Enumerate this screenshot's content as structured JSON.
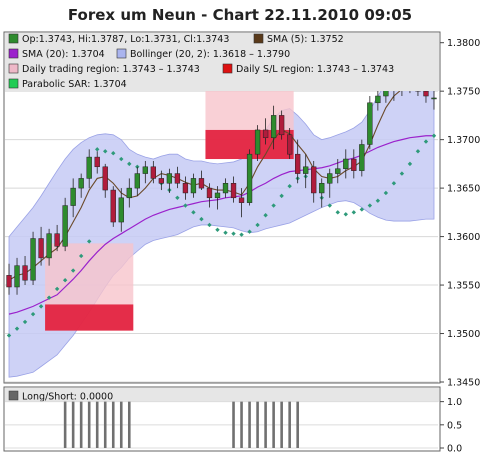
{
  "title": "Forex um Neun - Chart 22.11.2010 09:05",
  "legend": [
    {
      "text": "Op:1.3743, Hi:1.3787, Lo:1.3731, Cl:1.3743",
      "color": "#2e8b2e"
    },
    {
      "text": "SMA (5): 1.3752",
      "color": "#5a3a1a"
    },
    {
      "text": "SMA (20): 1.3704",
      "color": "#9b22cc"
    },
    {
      "text": "Bollinger (20, 2): 1.3618 – 1.3790",
      "color": "#aab4ee"
    },
    {
      "text": "Daily trading region: 1.3743 – 1.3743",
      "color": "#eeb8c8"
    },
    {
      "text": "Daily S/L region: 1.3743 – 1.3743",
      "color": "#dd1111"
    },
    {
      "text": "Parabolic SAR: 1.3704",
      "color": "#22cc55"
    }
  ],
  "sub_legend": {
    "text": "Long/Short: 0.0000",
    "color": "#666666"
  },
  "colors": {
    "up": "#2e8b2e",
    "down": "#b01c3c",
    "sma5": "#6b4a2a",
    "sma20": "#9b22cc",
    "band": "#c6caf4",
    "sar": "#2e9a7a",
    "sl": "#e01030",
    "trade": "#f7c4cc",
    "bar": "#707070"
  },
  "chart_data": [
    {
      "type": "candlestick",
      "ylim": [
        1.345,
        1.381
      ],
      "y_ticks": [
        "1.3450",
        "1.3500",
        "1.3550",
        "1.3600",
        "1.3650",
        "1.3700",
        "1.3750",
        "1.3800"
      ],
      "grid": true,
      "ohlc": [
        [
          1.356,
          1.3572,
          1.354,
          1.3548
        ],
        [
          1.3548,
          1.3578,
          1.354,
          1.357
        ],
        [
          1.357,
          1.358,
          1.355,
          1.3555
        ],
        [
          1.3555,
          1.3605,
          1.355,
          1.3598
        ],
        [
          1.3598,
          1.361,
          1.357,
          1.3578
        ],
        [
          1.3578,
          1.3608,
          1.357,
          1.3603
        ],
        [
          1.3603,
          1.3612,
          1.3585,
          1.359
        ],
        [
          1.359,
          1.364,
          1.3585,
          1.3632
        ],
        [
          1.3632,
          1.366,
          1.362,
          1.365
        ],
        [
          1.365,
          1.3665,
          1.364,
          1.366
        ],
        [
          1.366,
          1.369,
          1.365,
          1.3682
        ],
        [
          1.3682,
          1.3688,
          1.3665,
          1.3672
        ],
        [
          1.3672,
          1.3675,
          1.364,
          1.3648
        ],
        [
          1.3648,
          1.3652,
          1.361,
          1.3615
        ],
        [
          1.3615,
          1.365,
          1.3605,
          1.364
        ],
        [
          1.364,
          1.366,
          1.363,
          1.365
        ],
        [
          1.365,
          1.3672,
          1.3642,
          1.3665
        ],
        [
          1.3665,
          1.3678,
          1.3655,
          1.3672
        ],
        [
          1.3672,
          1.3678,
          1.3655,
          1.366
        ],
        [
          1.366,
          1.3668,
          1.3648,
          1.3655
        ],
        [
          1.3655,
          1.367,
          1.3645,
          1.3665
        ],
        [
          1.3665,
          1.3672,
          1.365,
          1.3655
        ],
        [
          1.3655,
          1.3662,
          1.3638,
          1.3645
        ],
        [
          1.3645,
          1.3665,
          1.364,
          1.366
        ],
        [
          1.366,
          1.3668,
          1.3648,
          1.365
        ],
        [
          1.365,
          1.3655,
          1.363,
          1.364
        ],
        [
          1.364,
          1.3652,
          1.3628,
          1.3645
        ],
        [
          1.3645,
          1.366,
          1.364,
          1.3655
        ],
        [
          1.3655,
          1.3662,
          1.3635,
          1.364
        ],
        [
          1.364,
          1.365,
          1.362,
          1.3635
        ],
        [
          1.3635,
          1.369,
          1.3632,
          1.3685
        ],
        [
          1.3685,
          1.3715,
          1.3678,
          1.371
        ],
        [
          1.371,
          1.3722,
          1.3695,
          1.3702
        ],
        [
          1.3702,
          1.3735,
          1.369,
          1.3725
        ],
        [
          1.3725,
          1.373,
          1.37,
          1.3705
        ],
        [
          1.3705,
          1.3712,
          1.368,
          1.3685
        ],
        [
          1.3685,
          1.37,
          1.3655,
          1.3665
        ],
        [
          1.3665,
          1.3685,
          1.365,
          1.3672
        ],
        [
          1.3672,
          1.3678,
          1.3635,
          1.3645
        ],
        [
          1.3645,
          1.366,
          1.363,
          1.3655
        ],
        [
          1.3655,
          1.367,
          1.364,
          1.3665
        ],
        [
          1.3665,
          1.368,
          1.3655,
          1.367
        ],
        [
          1.367,
          1.369,
          1.366,
          1.368
        ],
        [
          1.368,
          1.369,
          1.366,
          1.3668
        ],
        [
          1.3668,
          1.37,
          1.3662,
          1.3695
        ],
        [
          1.3695,
          1.3745,
          1.369,
          1.3738
        ],
        [
          1.3738,
          1.3752,
          1.373,
          1.3745
        ],
        [
          1.3745,
          1.3762,
          1.3738,
          1.3758
        ],
        [
          1.3758,
          1.3765,
          1.374,
          1.3752
        ],
        [
          1.3752,
          1.3768,
          1.3745,
          1.3762
        ],
        [
          1.3762,
          1.377,
          1.3748,
          1.3755
        ],
        [
          1.3755,
          1.3766,
          1.3745,
          1.375
        ],
        [
          1.375,
          1.376,
          1.3738,
          1.3745
        ],
        [
          1.3743,
          1.3787,
          1.3731,
          1.3743
        ]
      ],
      "sma5": [
        1.3555,
        1.356,
        1.3562,
        1.3568,
        1.3575,
        1.3582,
        1.3588,
        1.36,
        1.3615,
        1.363,
        1.3648,
        1.366,
        1.3662,
        1.3655,
        1.3645,
        1.364,
        1.3642,
        1.365,
        1.366,
        1.3665,
        1.3663,
        1.366,
        1.3656,
        1.3653,
        1.3655,
        1.365,
        1.3648,
        1.3648,
        1.3646,
        1.3643,
        1.3655,
        1.3672,
        1.3685,
        1.37,
        1.371,
        1.3706,
        1.3695,
        1.3685,
        1.367,
        1.3662,
        1.366,
        1.3662,
        1.3668,
        1.3672,
        1.3678,
        1.3695,
        1.3715,
        1.3733,
        1.3745,
        1.3752,
        1.3755,
        1.3756,
        1.3753,
        1.3752
      ],
      "sma20": [
        1.352,
        1.3522,
        1.3525,
        1.3528,
        1.3532,
        1.3536,
        1.354,
        1.3548,
        1.3556,
        1.3565,
        1.3575,
        1.3584,
        1.3592,
        1.3598,
        1.3603,
        1.3608,
        1.3613,
        1.3618,
        1.3622,
        1.3625,
        1.3628,
        1.363,
        1.3632,
        1.3634,
        1.3636,
        1.3637,
        1.3638,
        1.364,
        1.3641,
        1.3642,
        1.3646,
        1.3651,
        1.3655,
        1.366,
        1.3664,
        1.3667,
        1.3668,
        1.3669,
        1.367,
        1.3671,
        1.3673,
        1.3676,
        1.3679,
        1.3681,
        1.3684,
        1.3688,
        1.3692,
        1.3695,
        1.3698,
        1.37,
        1.3702,
        1.3703,
        1.3704,
        1.3704
      ],
      "boll_upper": [
        1.36,
        1.361,
        1.362,
        1.363,
        1.3642,
        1.3655,
        1.3668,
        1.368,
        1.369,
        1.3697,
        1.3702,
        1.3705,
        1.3706,
        1.3705,
        1.37,
        1.369,
        1.3685,
        1.3682,
        1.368,
        1.3683,
        1.3685,
        1.3685,
        1.368,
        1.3678,
        1.3678,
        1.3676,
        1.3675,
        1.3676,
        1.3677,
        1.368,
        1.369,
        1.37,
        1.371,
        1.3722,
        1.373,
        1.3732,
        1.3725,
        1.3716,
        1.3705,
        1.37,
        1.3702,
        1.3705,
        1.3708,
        1.3712,
        1.3718,
        1.373,
        1.3745,
        1.3758,
        1.3768,
        1.3775,
        1.3782,
        1.3786,
        1.3789,
        1.379
      ],
      "boll_lower": [
        1.3455,
        1.3456,
        1.3458,
        1.346,
        1.3466,
        1.3472,
        1.3478,
        1.3488,
        1.3498,
        1.351,
        1.3522,
        1.3535,
        1.3548,
        1.356,
        1.3568,
        1.3578,
        1.3585,
        1.3592,
        1.3596,
        1.3598,
        1.36,
        1.3602,
        1.3606,
        1.361,
        1.3612,
        1.3612,
        1.3611,
        1.361,
        1.3609,
        1.3606,
        1.3604,
        1.3605,
        1.3608,
        1.361,
        1.3612,
        1.3614,
        1.3618,
        1.3622,
        1.3626,
        1.363,
        1.3633,
        1.3636,
        1.3637,
        1.3635,
        1.363,
        1.3624,
        1.362,
        1.3617,
        1.3616,
        1.3616,
        1.3616,
        1.3617,
        1.3618,
        1.3618
      ],
      "sar": [
        1.3498,
        1.3505,
        1.3512,
        1.352,
        1.3528,
        1.3537,
        1.3546,
        1.3555,
        1.3565,
        1.358,
        1.3595,
        1.369,
        1.3688,
        1.3686,
        1.368,
        1.3675,
        1.3672,
        1.3668,
        1.3662,
        1.3655,
        1.3648,
        1.364,
        1.3632,
        1.3625,
        1.3618,
        1.3612,
        1.3607,
        1.3604,
        1.3603,
        1.3602,
        1.3605,
        1.3612,
        1.3622,
        1.3632,
        1.3642,
        1.3652,
        1.366,
        1.3662,
        1.365,
        1.364,
        1.3632,
        1.3625,
        1.3623,
        1.3625,
        1.3628,
        1.3632,
        1.3637,
        1.3645,
        1.3655,
        1.3665,
        1.3675,
        1.3688,
        1.3698,
        1.3704
      ],
      "trading_regions": [
        {
          "start": 5,
          "end": 15,
          "top": 1.3593,
          "bottom": 1.3503
        },
        {
          "start": 25,
          "end": 35,
          "top": 1.377,
          "bottom": 1.368
        }
      ],
      "sl_regions": [
        {
          "start": 5,
          "end": 15,
          "top": 1.353,
          "bottom": 1.3503
        },
        {
          "start": 25,
          "end": 35,
          "top": 1.371,
          "bottom": 1.368
        }
      ]
    },
    {
      "type": "bar",
      "name": "Long/Short",
      "ylim": [
        0,
        1.1
      ],
      "y_ticks": [
        "0.0",
        "0.5",
        "1.0"
      ],
      "active_ranges": [
        [
          7,
          15
        ],
        [
          28,
          36
        ]
      ],
      "values_active": 1.0
    }
  ]
}
